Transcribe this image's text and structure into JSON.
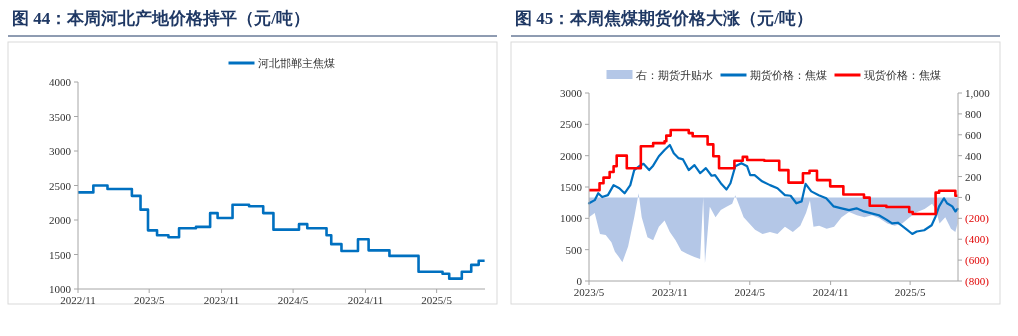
{
  "chart_data": [
    {
      "type": "step",
      "title": "图 44：本周河北产地价格持平（元/吨）",
      "legend": "top",
      "xlim": [
        "2022-11-01",
        "2025-09-01"
      ],
      "xticks": [
        {
          "value": "2022-11-01",
          "label": "2022/11"
        },
        {
          "value": "2023-05-01",
          "label": "2023/5"
        },
        {
          "value": "2023-11-01",
          "label": "2023/11"
        },
        {
          "value": "2024-05-01",
          "label": "2024/5"
        },
        {
          "value": "2024-11-01",
          "label": "2024/11"
        },
        {
          "value": "2025-05-01",
          "label": "2025/5"
        }
      ],
      "ylim": [
        1000,
        4000
      ],
      "yticks": [
        1000,
        1500,
        2000,
        2500,
        3000,
        3500,
        4000
      ],
      "series": [
        {
          "name": "河北邯郸主焦煤",
          "color": "#0070c0",
          "x": [
            "2022-11-01",
            "2022-12-10",
            "2023-01-15",
            "2023-03-18",
            "2023-04-09",
            "2023-04-28",
            "2023-05-21",
            "2023-06-19",
            "2023-07-16",
            "2023-08-28",
            "2023-10-03",
            "2023-10-22",
            "2023-11-29",
            "2024-01-10",
            "2024-02-15",
            "2024-03-12",
            "2024-05-16",
            "2024-06-06",
            "2024-07-25",
            "2024-08-06",
            "2024-09-01",
            "2024-10-13",
            "2024-11-09",
            "2025-01-01",
            "2025-03-16",
            "2025-05-16",
            "2025-06-02",
            "2025-07-04",
            "2025-07-28",
            "2025-08-16",
            "2025-08-31"
          ],
          "values": [
            2400,
            2500,
            2450,
            2350,
            2150,
            1850,
            1780,
            1750,
            1880,
            1900,
            2100,
            2030,
            2220,
            2200,
            2100,
            1860,
            1940,
            1880,
            1780,
            1650,
            1550,
            1720,
            1560,
            1480,
            1250,
            1220,
            1150,
            1250,
            1350,
            1410,
            1410
          ]
        }
      ]
    },
    {
      "type": "line",
      "title": "图 45：本周焦煤期货价格大涨（元/吨）",
      "legend": "top",
      "xlim": [
        "2023-05-01",
        "2025-08-18"
      ],
      "xticks": [
        {
          "value": "2023-05-01",
          "label": "2023/5"
        },
        {
          "value": "2023-11-01",
          "label": "2023/11"
        },
        {
          "value": "2024-05-01",
          "label": "2024/5"
        },
        {
          "value": "2024-11-01",
          "label": "2024/11"
        },
        {
          "value": "2025-05-01",
          "label": "2025/5"
        }
      ],
      "ylim": [
        0,
        3000
      ],
      "yticks": [
        0,
        500,
        1000,
        1500,
        2000,
        2500,
        3000
      ],
      "y2lim": [
        -800,
        1000
      ],
      "y2ticks": [
        {
          "value": -800,
          "label": "(800)"
        },
        {
          "value": -600,
          "label": "(600)"
        },
        {
          "value": -400,
          "label": "(400)"
        },
        {
          "value": -200,
          "label": "(200)"
        },
        0,
        200,
        400,
        600,
        800,
        {
          "value": 1000,
          "label": "1,000"
        }
      ],
      "series": [
        {
          "name": "右：期货升贴水",
          "type": "area",
          "axis": "y2",
          "color": "#b4c7e7",
          "x": [
            "2023-05-01",
            "2023-05-14",
            "2023-05-26",
            "2023-06-08",
            "2023-06-21",
            "2023-06-29",
            "2023-07-08",
            "2023-07-16",
            "2023-07-29",
            "2023-08-12",
            "2023-08-22",
            "2023-08-29",
            "2023-09-11",
            "2023-09-24",
            "2023-10-07",
            "2023-10-20",
            "2023-11-01",
            "2023-11-14",
            "2023-11-27",
            "2023-12-10",
            "2023-12-27",
            "2024-01-09",
            "2024-01-16",
            "2024-01-20",
            "2024-01-31",
            "2024-02-13",
            "2024-02-25",
            "2024-03-09",
            "2024-03-22",
            "2024-03-29",
            "2024-04-08",
            "2024-04-17",
            "2024-04-30",
            "2024-05-13",
            "2024-05-30",
            "2024-06-16",
            "2024-07-03",
            "2024-07-20",
            "2024-08-07",
            "2024-08-24",
            "2024-09-06",
            "2024-09-15",
            "2024-09-23",
            "2024-10-06",
            "2024-10-23",
            "2024-11-09",
            "2024-11-26",
            "2024-12-13",
            "2024-12-31",
            "2025-01-17",
            "2025-02-03",
            "2025-02-20",
            "2025-03-10",
            "2025-03-27",
            "2025-04-13",
            "2025-04-30",
            "2025-05-17",
            "2025-06-03",
            "2025-06-20",
            "2025-06-28",
            "2025-07-07",
            "2025-07-20",
            "2025-08-02",
            "2025-08-12",
            "2025-08-17"
          ],
          "values": [
            -190,
            -150,
            -350,
            -360,
            -430,
            -520,
            -570,
            -620,
            -470,
            -190,
            40,
            -190,
            -380,
            -410,
            -280,
            -220,
            -330,
            -410,
            -510,
            -540,
            -570,
            -590,
            0,
            -630,
            -90,
            -190,
            -120,
            -90,
            -60,
            20,
            -90,
            -190,
            -250,
            -310,
            -350,
            -330,
            -350,
            -280,
            -330,
            -270,
            -150,
            -30,
            -280,
            -270,
            -300,
            -280,
            -190,
            -140,
            -170,
            -190,
            -170,
            -200,
            -250,
            -270,
            -250,
            -190,
            -140,
            -110,
            -60,
            -110,
            -250,
            -190,
            -300,
            -330,
            -250
          ]
        },
        {
          "name": "期货价格：焦煤",
          "color": "#0070c0",
          "x": [
            "2023-05-01",
            "2023-05-14",
            "2023-05-22",
            "2023-05-31",
            "2023-06-13",
            "2023-06-26",
            "2023-07-09",
            "2023-07-21",
            "2023-08-03",
            "2023-08-12",
            "2023-08-25",
            "2023-09-02",
            "2023-09-15",
            "2023-09-24",
            "2023-10-07",
            "2023-10-20",
            "2023-11-01",
            "2023-11-10",
            "2023-11-21",
            "2023-12-01",
            "2023-12-14",
            "2023-12-27",
            "2024-01-09",
            "2024-01-22",
            "2024-02-04",
            "2024-02-12",
            "2024-02-25",
            "2024-03-09",
            "2024-03-18",
            "2024-03-29",
            "2024-04-12",
            "2024-04-25",
            "2024-05-02",
            "2024-05-12",
            "2024-05-29",
            "2024-06-16",
            "2024-07-03",
            "2024-07-20",
            "2024-08-02",
            "2024-08-15",
            "2024-08-27",
            "2024-09-05",
            "2024-09-18",
            "2024-10-05",
            "2024-10-22",
            "2024-11-08",
            "2024-11-26",
            "2024-12-13",
            "2024-12-30",
            "2025-01-16",
            "2025-02-02",
            "2025-02-19",
            "2025-03-08",
            "2025-03-21",
            "2025-04-03",
            "2025-04-20",
            "2025-05-06",
            "2025-05-16",
            "2025-06-02",
            "2025-06-19",
            "2025-06-28",
            "2025-07-06",
            "2025-07-17",
            "2025-07-24",
            "2025-08-05",
            "2025-08-12",
            "2025-08-17"
          ],
          "values": [
            1240,
            1290,
            1400,
            1340,
            1370,
            1530,
            1480,
            1400,
            1530,
            1770,
            1840,
            1870,
            1770,
            1840,
            1990,
            2090,
            2170,
            2040,
            1960,
            1940,
            1770,
            1850,
            1720,
            1800,
            1680,
            1690,
            1560,
            1460,
            1560,
            1830,
            1880,
            1830,
            1690,
            1690,
            1590,
            1530,
            1480,
            1370,
            1360,
            1240,
            1270,
            1550,
            1430,
            1370,
            1320,
            1190,
            1160,
            1130,
            1160,
            1110,
            1080,
            1050,
            980,
            920,
            930,
            840,
            750,
            790,
            810,
            890,
            1030,
            1190,
            1320,
            1240,
            1190,
            1110,
            1150
          ]
        },
        {
          "name": "现货价格：焦煤",
          "type": "step",
          "color": "#ff0000",
          "x": [
            "2023-05-01",
            "2023-05-25",
            "2023-06-03",
            "2023-06-17",
            "2023-06-26",
            "2023-07-03",
            "2023-07-26",
            "2023-08-27",
            "2023-09-24",
            "2023-10-20",
            "2023-10-24",
            "2023-11-03",
            "2023-12-14",
            "2023-12-23",
            "2024-01-26",
            "2024-02-08",
            "2024-02-21",
            "2024-03-27",
            "2024-04-15",
            "2024-04-25",
            "2024-06-03",
            "2024-07-07",
            "2024-07-28",
            "2024-08-30",
            "2024-09-14",
            "2024-10-01",
            "2024-10-31",
            "2024-11-30",
            "2025-01-16",
            "2025-01-29",
            "2025-03-08",
            "2025-04-29",
            "2025-05-07",
            "2025-06-28",
            "2025-07-06",
            "2025-08-12",
            "2025-08-17"
          ],
          "values": [
            1450,
            1560,
            1650,
            1740,
            1830,
            2000,
            1800,
            2150,
            2200,
            2230,
            2320,
            2410,
            2360,
            2310,
            2180,
            1990,
            1800,
            1920,
            1980,
            1930,
            1920,
            1770,
            1570,
            1720,
            1760,
            1610,
            1510,
            1380,
            1330,
            1200,
            1180,
            1100,
            1070,
            1410,
            1440,
            1360,
            1360
          ]
        }
      ]
    }
  ]
}
